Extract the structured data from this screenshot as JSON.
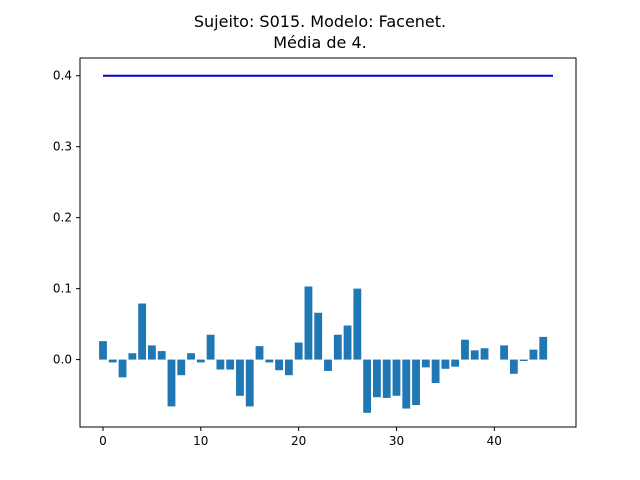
{
  "chart_data": {
    "type": "bar",
    "title_lines": [
      "Sujeito: S015. Modelo: Facenet.",
      "Média de 4."
    ],
    "xlabel": "",
    "ylabel": "",
    "xlim": [
      -2.35,
      48.35
    ],
    "ylim": [
      -0.095,
      0.425
    ],
    "xticks": [
      0,
      10,
      20,
      30,
      40
    ],
    "yticks": [
      0.0,
      0.1,
      0.2,
      0.3,
      0.4
    ],
    "ytick_labels": [
      "0.0",
      "0.1",
      "0.2",
      "0.3",
      "0.4"
    ],
    "grid": false,
    "bar_color": "#1f77b4",
    "line_color": "#0000cc",
    "hline": {
      "y": 0.4,
      "x_start": 0,
      "x_end": 46
    },
    "x": [
      0,
      1,
      2,
      3,
      4,
      5,
      6,
      7,
      8,
      9,
      10,
      11,
      12,
      13,
      14,
      15,
      16,
      17,
      18,
      19,
      20,
      21,
      22,
      23,
      24,
      25,
      26,
      27,
      28,
      29,
      30,
      31,
      32,
      33,
      34,
      35,
      36,
      37,
      38,
      39,
      40,
      41,
      42,
      43,
      44,
      45
    ],
    "values": [
      0.026,
      -0.004,
      -0.025,
      0.009,
      0.079,
      0.02,
      0.012,
      -0.066,
      -0.022,
      0.009,
      -0.004,
      0.035,
      -0.014,
      -0.014,
      -0.051,
      -0.066,
      0.019,
      -0.004,
      -0.015,
      -0.022,
      0.024,
      0.103,
      0.066,
      -0.016,
      0.035,
      0.048,
      0.1,
      -0.075,
      -0.053,
      -0.054,
      -0.051,
      -0.069,
      -0.064,
      -0.011,
      -0.033,
      -0.013,
      -0.01,
      0.028,
      0.013,
      0.016,
      0.0,
      0.02,
      -0.02,
      -0.002,
      0.014,
      0.032
    ]
  }
}
